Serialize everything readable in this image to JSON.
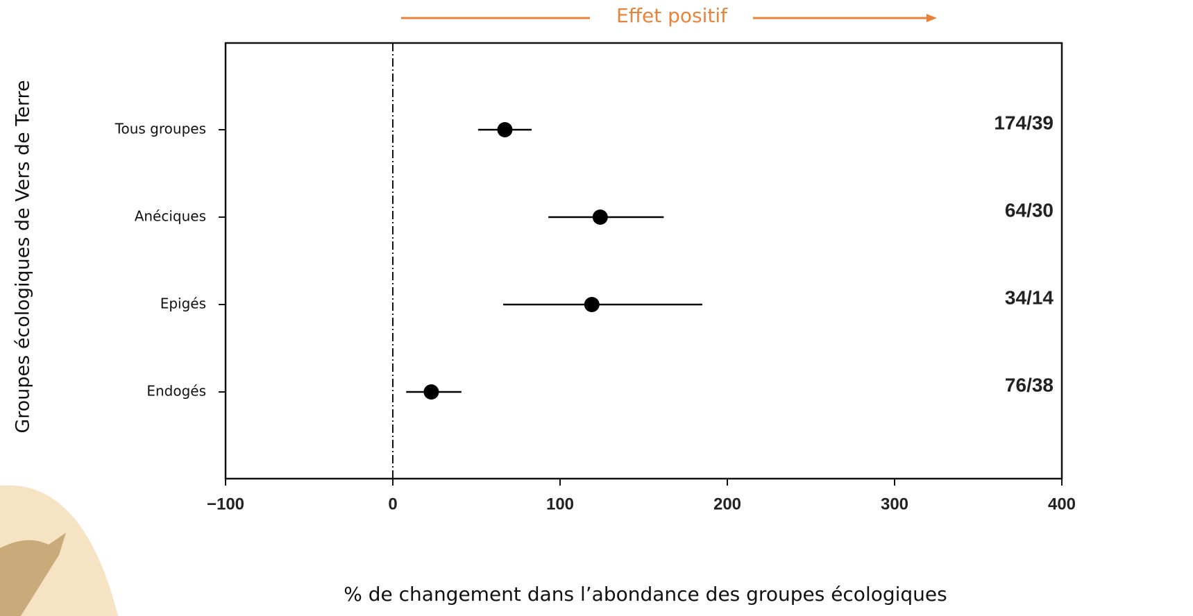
{
  "chart_data": {
    "type": "forest",
    "title": "Effet positif",
    "x_label": "% de changement dans l’abondance des groupes écologiques",
    "y_label": "Groupes écologiques de Vers de Terre",
    "categories": [
      "Tous groupes",
      "Anéciques",
      "Epigés",
      "Endogés"
    ],
    "series": [
      {
        "color": "#000000",
        "values": [
          67,
          124,
          119,
          23
        ],
        "ci_low": [
          51,
          93,
          66,
          8
        ],
        "ci_high": [
          83,
          162,
          185,
          41
        ],
        "n_labels": [
          "174/39",
          "64/30",
          "34/14",
          "76/38"
        ]
      }
    ],
    "xlim": [
      -100,
      400
    ],
    "xticks": [
      {
        "value": -100,
        "label": "−100"
      },
      0,
      100,
      200,
      300,
      400
    ],
    "reference_line": 0,
    "title_color": "#e8833a"
  }
}
